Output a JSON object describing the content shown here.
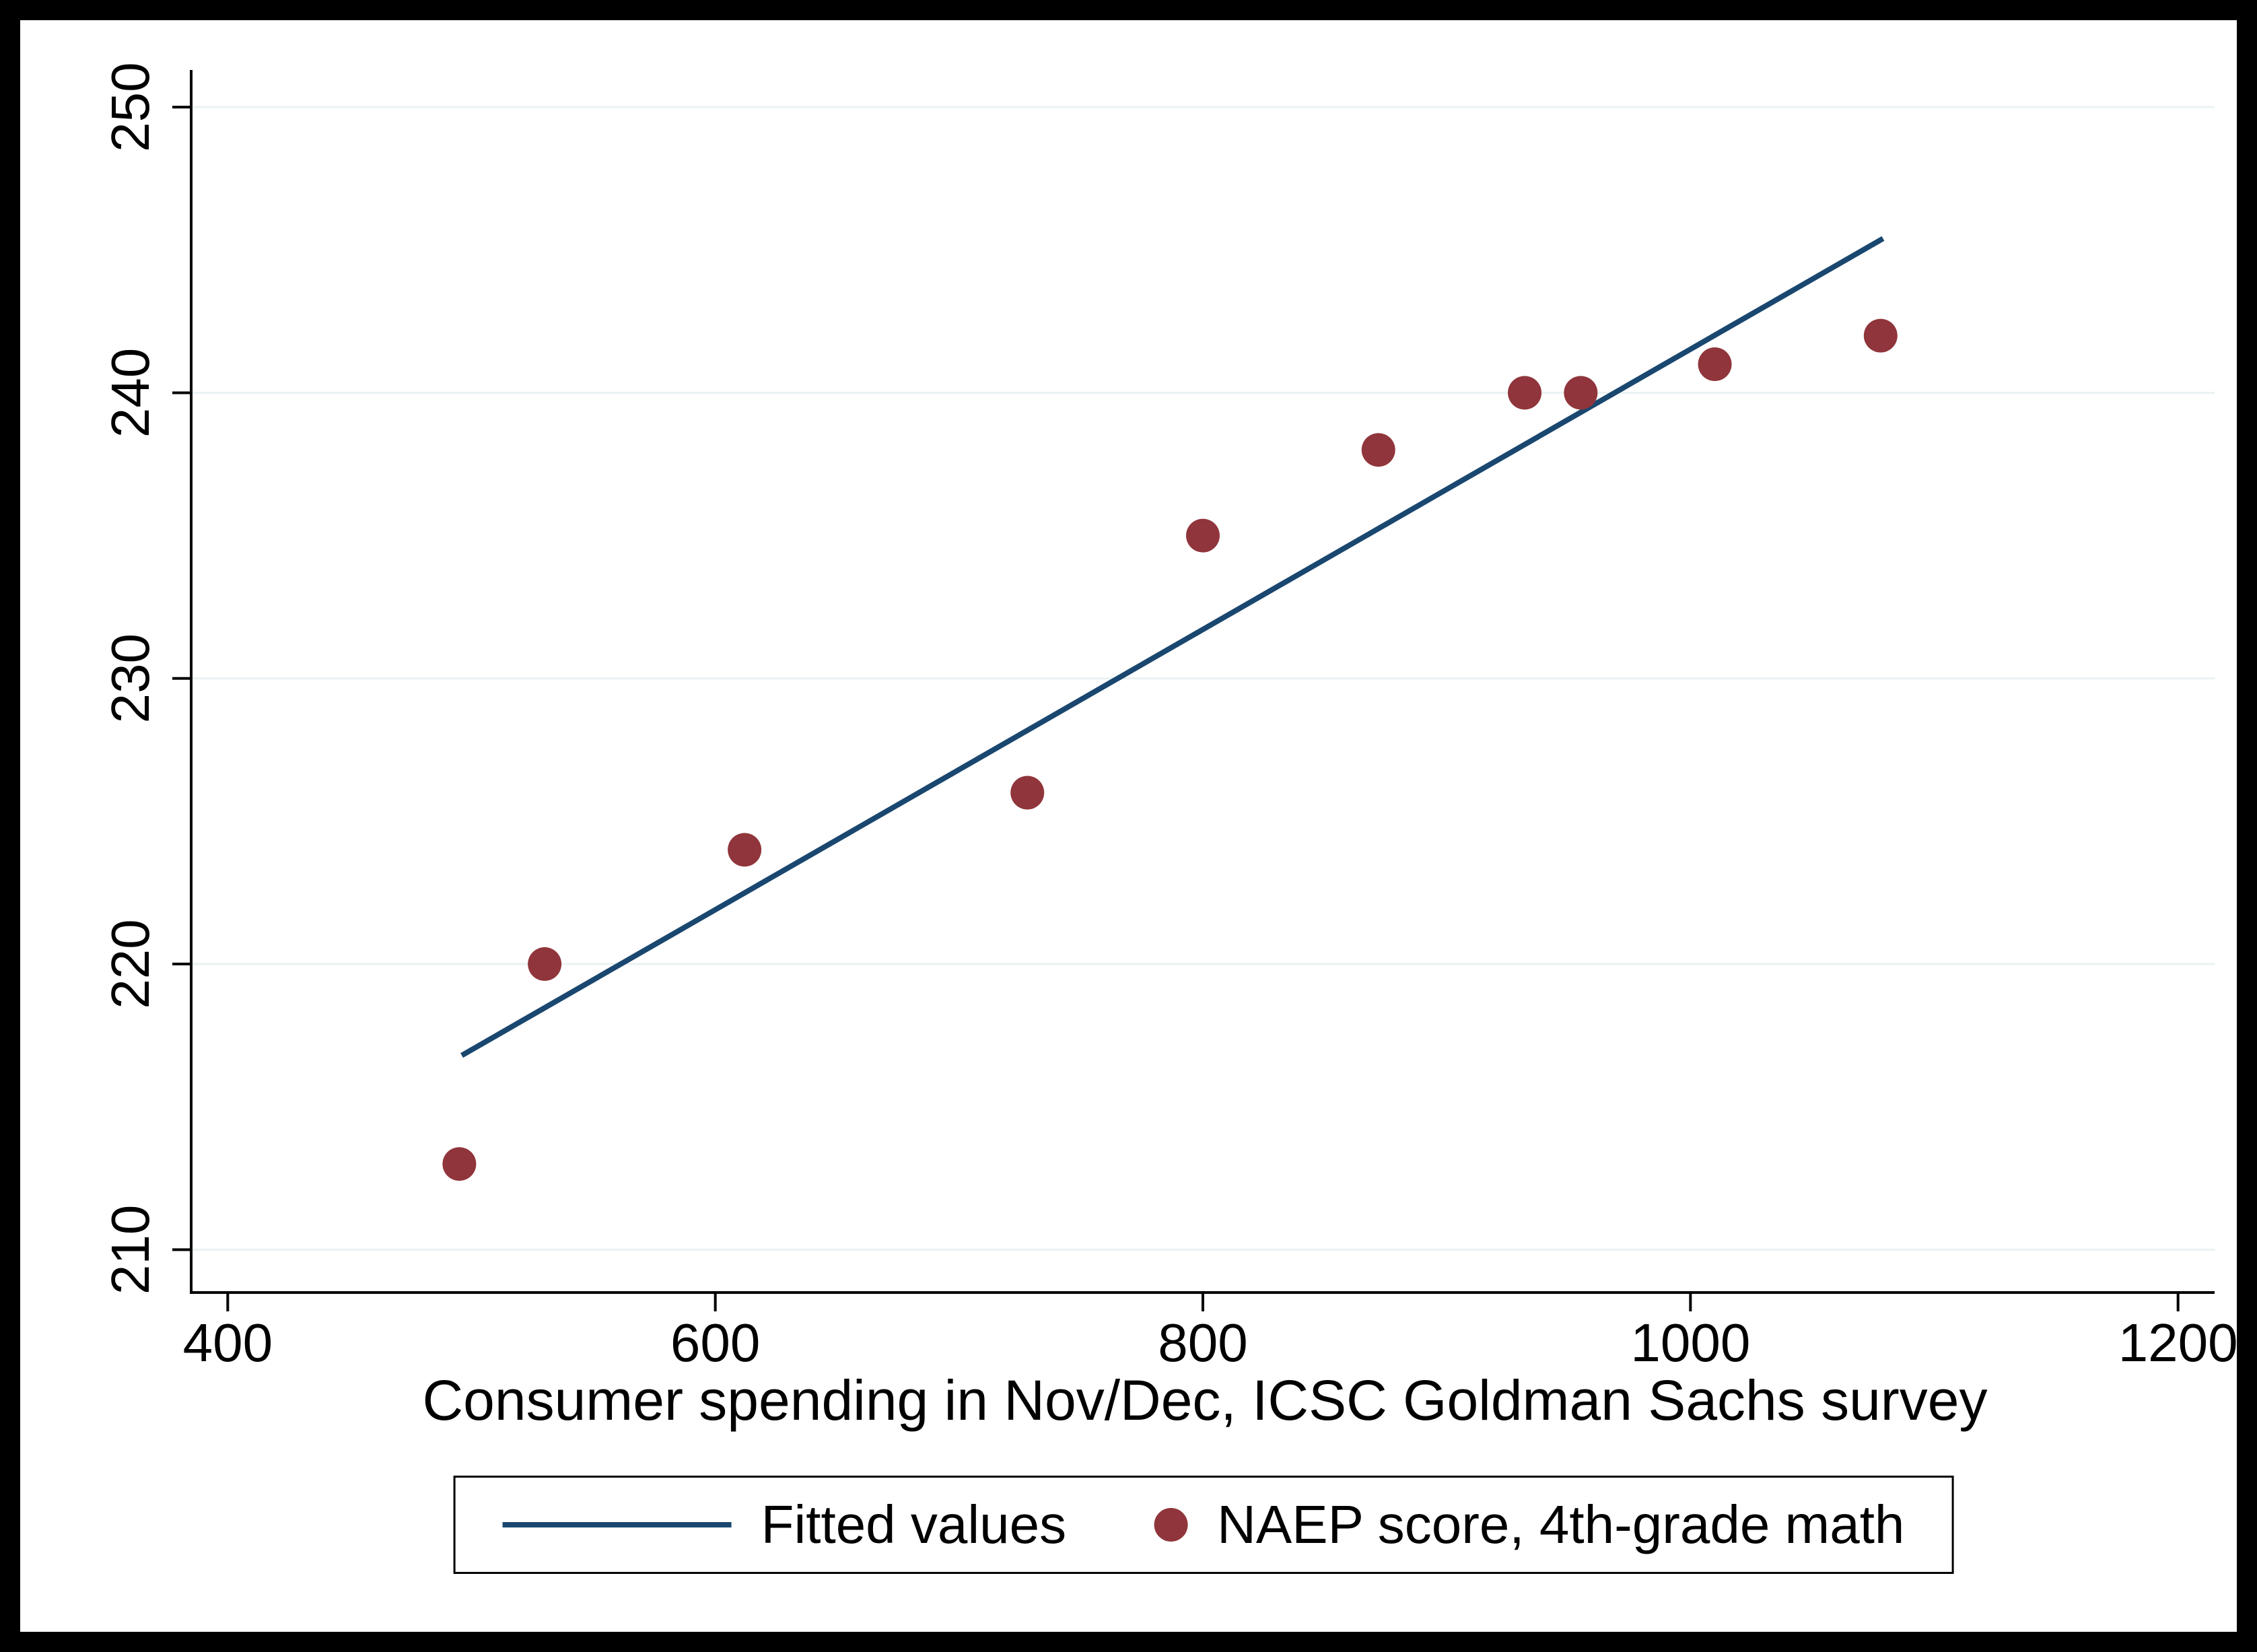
{
  "chart_data": {
    "type": "scatter",
    "title": "",
    "xlabel": "Consumer spending in Nov/Dec, ICSC Goldman Sachs survey",
    "ylabel": "",
    "xlim": [
      385,
      1215
    ],
    "ylim": [
      208.5,
      251.3
    ],
    "xticks": [
      400,
      600,
      800,
      1000,
      1200
    ],
    "yticks": [
      210,
      220,
      230,
      240,
      250
    ],
    "grid": "horizontal",
    "legend_position": "bottom",
    "colors": {
      "fitted_line": "#1a476f",
      "points": "#90353b",
      "gridline": "#eaf2f3",
      "axis": "#000000",
      "background": "#ffffff",
      "frame_border": "#000000"
    },
    "series": [
      {
        "name": "Fitted values",
        "type": "line",
        "x": [
          496,
          1079
        ],
        "y": [
          216.8,
          245.4
        ]
      },
      {
        "name": "NAEP score, 4th-grade math",
        "type": "scatter",
        "x": [
          495,
          530,
          612,
          728,
          800,
          872,
          932,
          955,
          1010,
          1078
        ],
        "y": [
          213,
          220,
          224,
          226,
          235,
          238,
          240,
          240,
          241,
          242
        ]
      }
    ]
  }
}
